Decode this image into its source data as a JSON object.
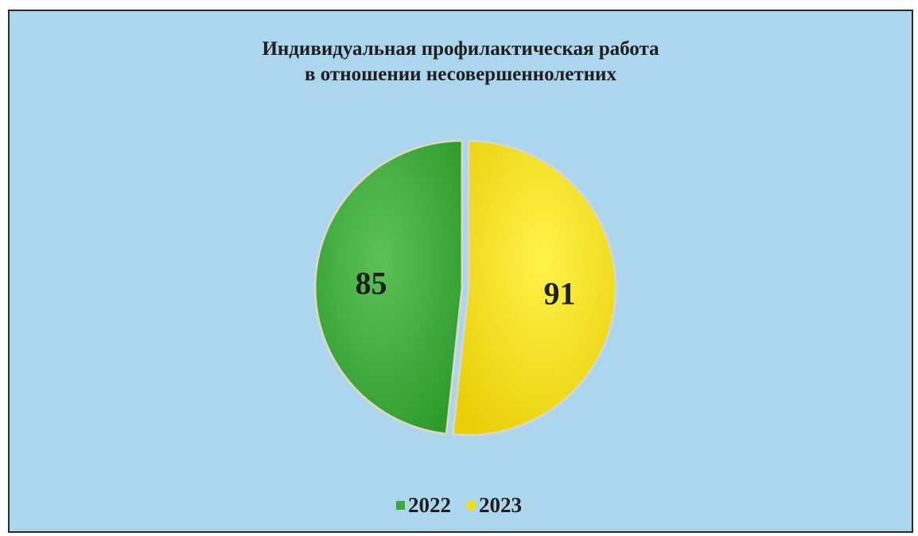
{
  "chart_data": {
    "type": "pie",
    "title": "Индивидуальная профилактическая работа в отношении несовершеннолетних",
    "title_lines": [
      "Индивидуальная профилактическая работа",
      "в отношении несовершеннолетних"
    ],
    "categories": [
      "2022",
      "2023"
    ],
    "values": [
      85,
      91
    ],
    "colors": [
      "#3da93a",
      "#f4de16"
    ],
    "data_labels": [
      "85",
      "91"
    ],
    "legend": [
      "2022",
      "2023"
    ],
    "legend_position": "bottom"
  }
}
